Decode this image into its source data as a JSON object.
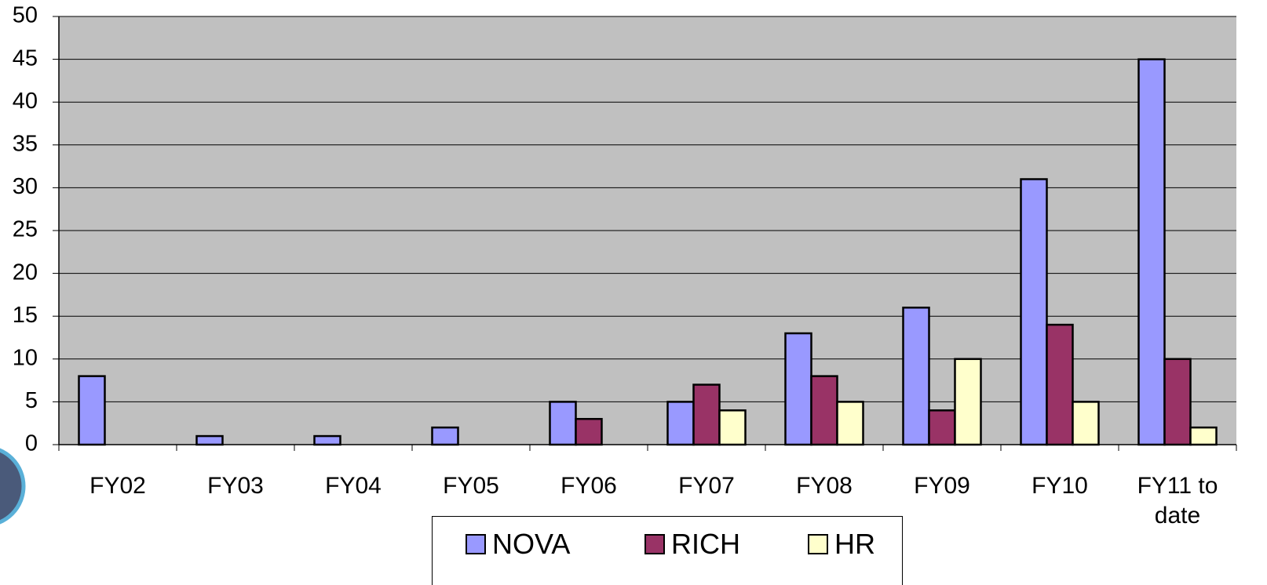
{
  "chart_data": {
    "type": "bar",
    "categories": [
      "FY02",
      "FY03",
      "FY04",
      "FY05",
      "FY06",
      "FY07",
      "FY08",
      "FY09",
      "FY10",
      "FY11 to date"
    ],
    "series": [
      {
        "name": "NOVA",
        "color": "#9999ff",
        "values": [
          8,
          1,
          1,
          2,
          5,
          5,
          13,
          16,
          31,
          45
        ]
      },
      {
        "name": "RICH",
        "color": "#993366",
        "values": [
          0,
          0,
          0,
          0,
          3,
          7,
          8,
          4,
          14,
          10
        ]
      },
      {
        "name": "HR",
        "color": "#ffffcc",
        "values": [
          0,
          0,
          0,
          0,
          0,
          4,
          5,
          10,
          5,
          2
        ]
      }
    ],
    "ylim": [
      0,
      50
    ],
    "yticks": [
      0,
      5,
      10,
      15,
      20,
      25,
      30,
      35,
      40,
      45,
      50
    ],
    "grid": true
  }
}
